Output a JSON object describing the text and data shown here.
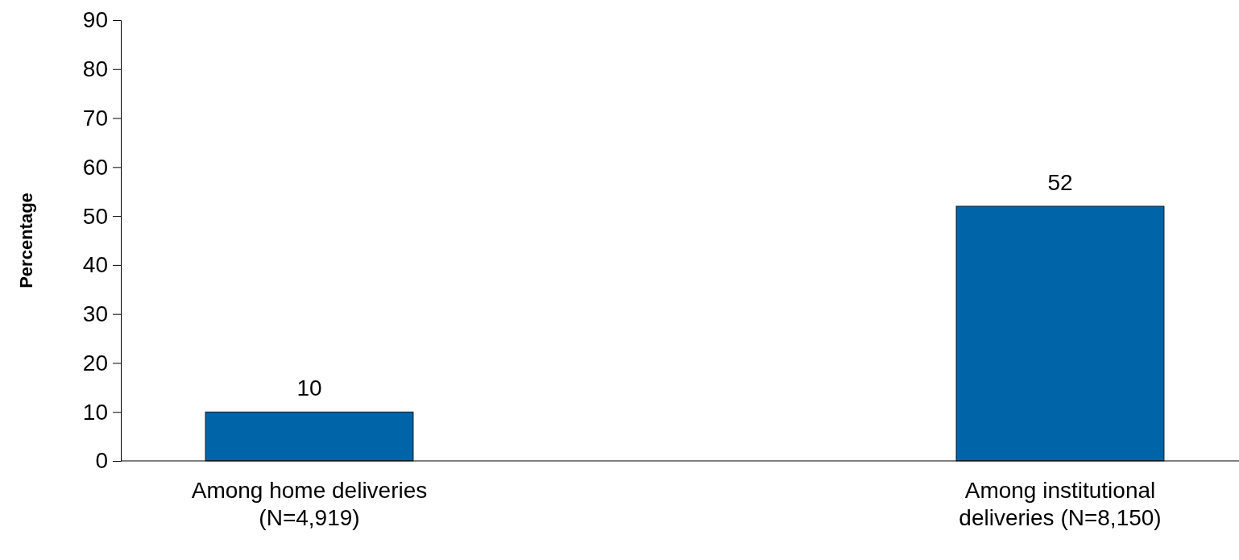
{
  "chart_data": {
    "type": "bar",
    "ylabel": "Percentage",
    "categories": [
      "Among home deliveries\n(N=4,919)",
      "Among institutional\ndeliveries (N=8,150)"
    ],
    "values": [
      10,
      52
    ],
    "color": "#0064a8",
    "ylim": [
      0,
      90
    ],
    "yticks": [
      0,
      10,
      20,
      30,
      40,
      50,
      60,
      70,
      80,
      90
    ],
    "data_labels": true
  }
}
